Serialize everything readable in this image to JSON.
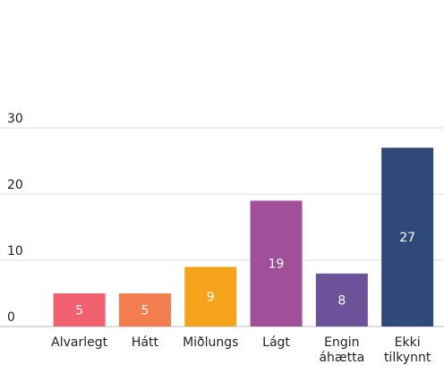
{
  "chart_data": {
    "type": "bar",
    "categories": [
      "Alvarlegt",
      "Hátt",
      "Miðlungs",
      "Lágt",
      "Engin áhætta",
      "Ekki tilkynnt"
    ],
    "values": [
      5,
      5,
      9,
      19,
      8,
      27
    ],
    "colors": [
      "#f0606e",
      "#f47d50",
      "#f5a31a",
      "#a04f98",
      "#6b5299",
      "#2f4a7a"
    ],
    "ylim": [
      0,
      30
    ],
    "yticks": [
      0,
      10,
      20,
      30
    ],
    "grid": true
  }
}
